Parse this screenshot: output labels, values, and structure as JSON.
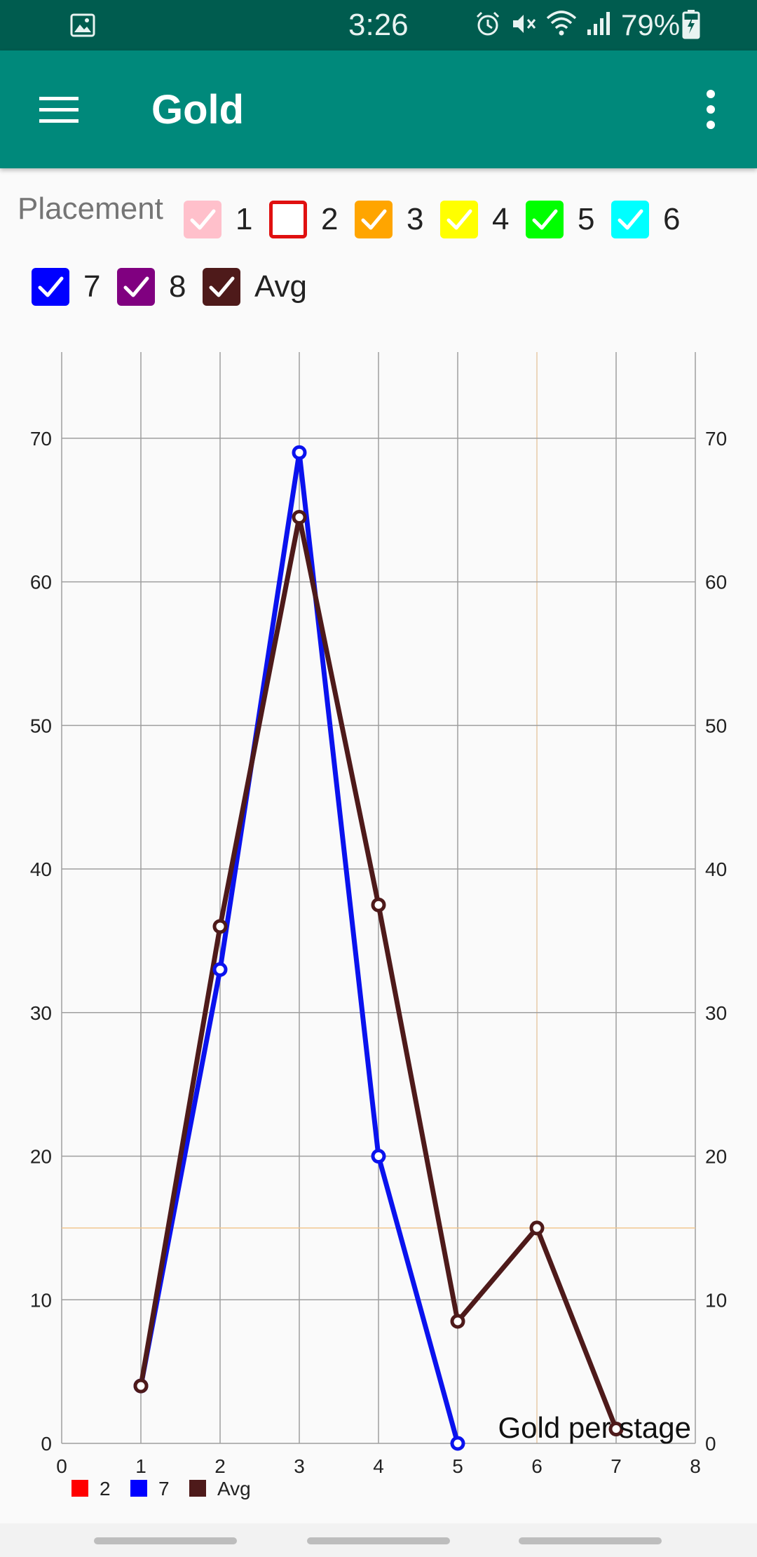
{
  "status_bar": {
    "time": "3:26",
    "battery": "79%",
    "icons": [
      "image-icon",
      "alarm-icon",
      "mute-icon",
      "wifi-icon",
      "signal-icon",
      "battery-charging-icon"
    ]
  },
  "app_bar": {
    "title": "Gold",
    "menu_icon": "hamburger-icon",
    "more_icon": "more-vert-icon",
    "color": "#00897b"
  },
  "filter": {
    "label": "Placement",
    "options": [
      {
        "label": "1",
        "checked": true,
        "color": "#ffc0cb"
      },
      {
        "label": "2",
        "checked": false,
        "color": "#e01010"
      },
      {
        "label": "3",
        "checked": true,
        "color": "#ffa500"
      },
      {
        "label": "4",
        "checked": true,
        "color": "#ffff00"
      },
      {
        "label": "5",
        "checked": true,
        "color": "#00ff00"
      },
      {
        "label": "6",
        "checked": true,
        "color": "#00ffff"
      },
      {
        "label": "7",
        "checked": true,
        "color": "#0000ff"
      },
      {
        "label": "8",
        "checked": true,
        "color": "#800080"
      },
      {
        "label": "Avg",
        "checked": true,
        "color": "#4e1a1a"
      }
    ]
  },
  "chart_data": {
    "type": "line",
    "title": "",
    "description_label": "Gold per stage",
    "xlabel": "",
    "ylabel": "",
    "xlim": [
      0,
      8
    ],
    "ylim": [
      0,
      76
    ],
    "x_ticks": [
      "0",
      "1",
      "2",
      "3",
      "4",
      "5",
      "6",
      "7",
      "8"
    ],
    "y_ticks": [
      "0",
      "10",
      "20",
      "30",
      "40",
      "50",
      "60",
      "70"
    ],
    "grid": true,
    "highlight_x": 6,
    "highlight_y": 15,
    "legend_position": "bottom-left",
    "legend": [
      {
        "name": "2",
        "color": "#ff0000"
      },
      {
        "name": "7",
        "color": "#0000ff"
      },
      {
        "name": "Avg",
        "color": "#4e1a1a"
      }
    ],
    "series": [
      {
        "name": "7",
        "color": "#0a12ee",
        "x": [
          1,
          2,
          3,
          4,
          5
        ],
        "values": [
          4,
          33,
          69,
          20,
          0
        ]
      },
      {
        "name": "Avg",
        "color": "#4e1a1a",
        "x": [
          1,
          2,
          3,
          4,
          5,
          6,
          7
        ],
        "values": [
          4,
          36,
          64.5,
          37.5,
          8.5,
          15,
          1
        ]
      }
    ]
  }
}
